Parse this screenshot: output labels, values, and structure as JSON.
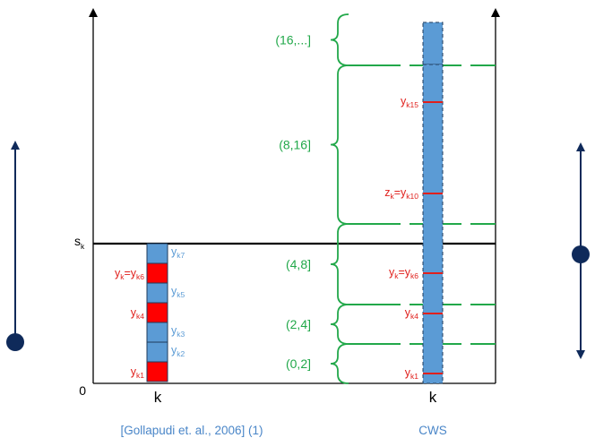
{
  "labels": {
    "origin": "0",
    "s_base": "s",
    "s_sub": "k",
    "k_left": "k",
    "k_right": "k",
    "caption_left": "[Gollapudi et. al., 2006] (1)",
    "caption_right": "CWS"
  },
  "left_cells": [
    {
      "label_base": "y",
      "label_sub": "k7",
      "color": "blue",
      "side": "right"
    },
    {
      "label_base": "y",
      "label_sub": "k",
      "label_mid": "=y",
      "label_sub2": "k6",
      "color": "red",
      "side": "left"
    },
    {
      "label_base": "y",
      "label_sub": "k5",
      "color": "blue",
      "side": "right"
    },
    {
      "label_base": "y",
      "label_sub": "k4",
      "color": "red",
      "side": "left"
    },
    {
      "label_base": "y",
      "label_sub": "k3",
      "color": "blue",
      "side": "right"
    },
    {
      "label_base": "y",
      "label_sub": "k2",
      "color": "blue",
      "side": "right"
    },
    {
      "label_base": "y",
      "label_sub": "k1",
      "color": "red",
      "side": "left"
    }
  ],
  "intervals": [
    {
      "label": "(16,...]"
    },
    {
      "label": "(8,16]"
    },
    {
      "label": "(4,8]"
    },
    {
      "label": "(2,4]"
    },
    {
      "label": "(0,2]"
    }
  ],
  "right_marks": [
    {
      "label_base": "y",
      "label_sub": "k15"
    },
    {
      "label_base": "z",
      "label_sub": "k",
      "label_mid": "=y",
      "label_sub2": "k10"
    },
    {
      "label_base": "y",
      "label_sub": "k",
      "label_mid": "=y",
      "label_sub2": "k6"
    },
    {
      "label_base": "y",
      "label_sub": "k4"
    },
    {
      "label_base": "y",
      "label_sub": "k1"
    }
  ],
  "colors": {
    "cell_blue": "#5b9bd5",
    "cell_red": "#ff0000",
    "mark_red": "#e0201c",
    "interval_green": "#22a84a",
    "arrow_navy": "#0f2a5a",
    "caption_blue": "#4a86c8"
  }
}
